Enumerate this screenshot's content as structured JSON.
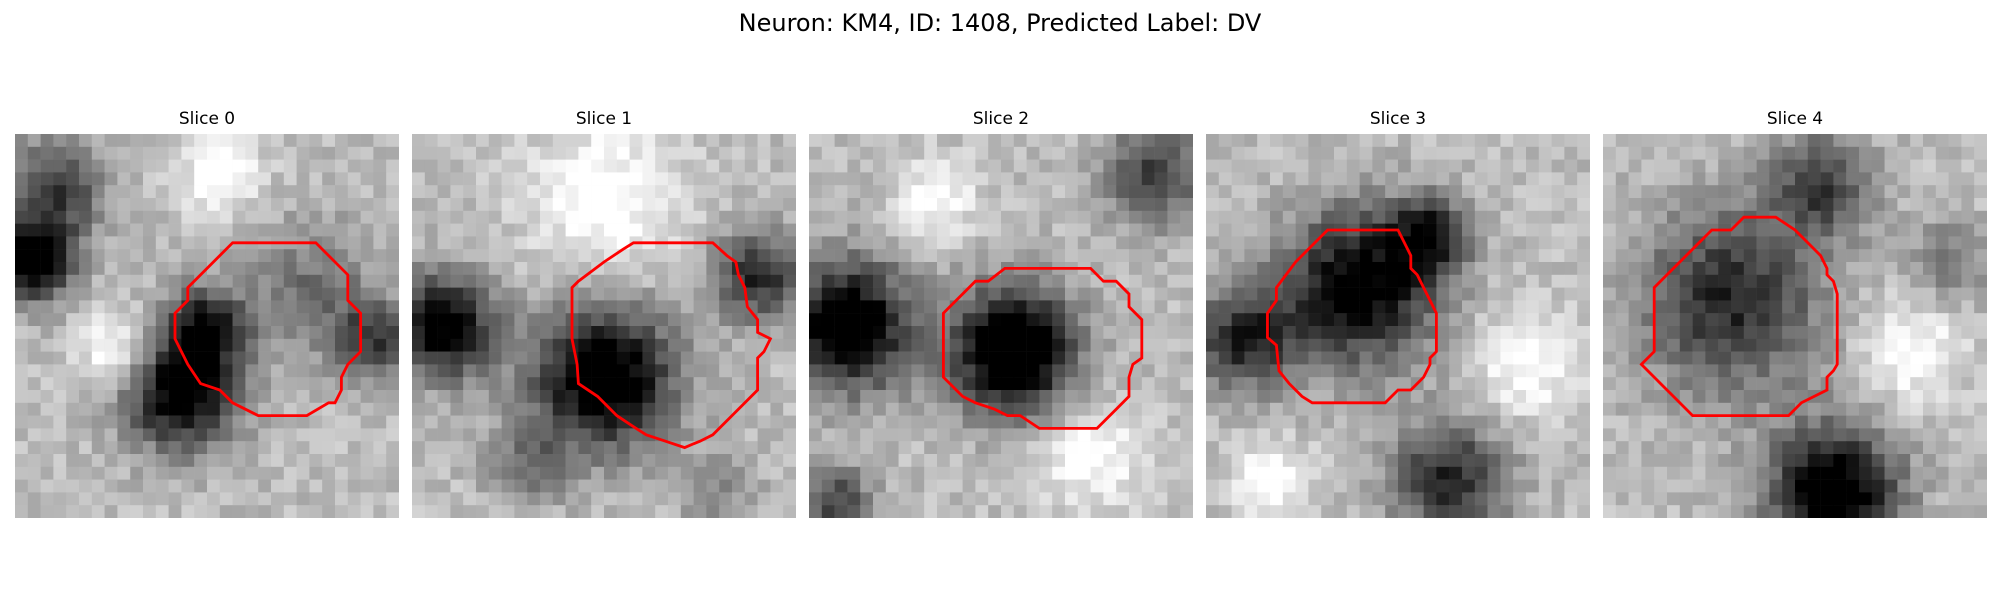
{
  "figure": {
    "title": "Neuron: KM4, ID: 1408, Predicted Label: DV",
    "contour_color": "#ff0000",
    "colormap": "grayscale",
    "panels": [
      {
        "title": "Slice 0"
      },
      {
        "title": "Slice 1"
      },
      {
        "title": "Slice 2"
      },
      {
        "title": "Slice 3"
      },
      {
        "title": "Slice 4"
      }
    ]
  }
}
